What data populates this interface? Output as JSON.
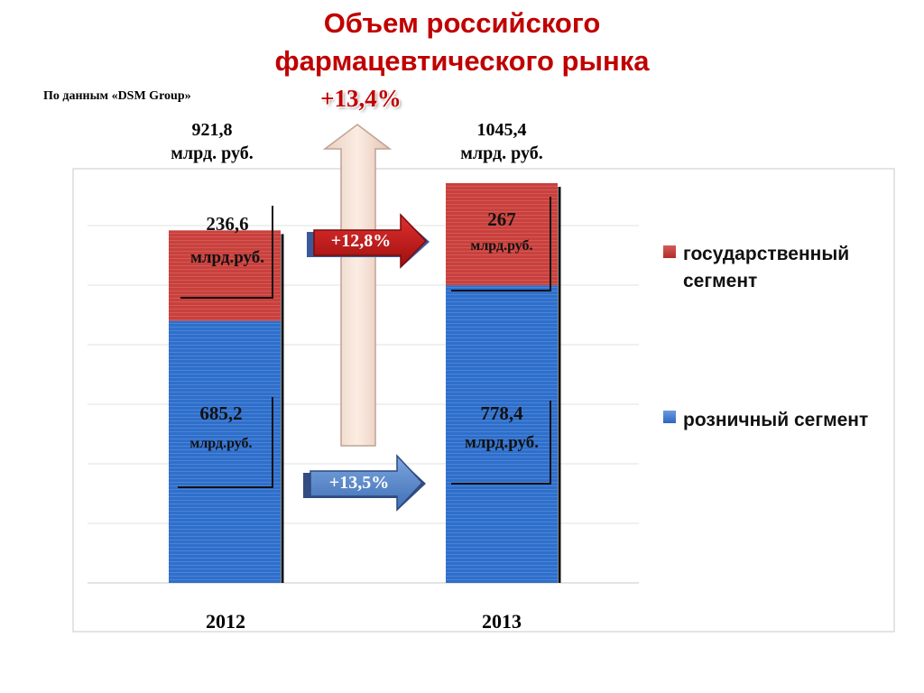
{
  "title_line1": "Объем российского",
  "title_line2": "фармацевтического рынка",
  "source_note": "По данным «DSM Group»",
  "total_growth_label": "+13,4%",
  "colors": {
    "government": "#c0392b",
    "retail": "#2f6fcb",
    "title": "#c00000"
  },
  "chart_data": {
    "type": "bar",
    "stacked": true,
    "categories": [
      "2012",
      "2013"
    ],
    "series": [
      {
        "name": "розничный сегмент",
        "values": [
          685.2,
          778.4
        ],
        "value_labels": [
          "685,2",
          "778,4"
        ],
        "unit_labels": [
          "млрд.руб.",
          "млрд.руб."
        ]
      },
      {
        "name": "государственный сегмент",
        "values": [
          236.6,
          267
        ],
        "value_labels": [
          "236,6",
          "267"
        ],
        "unit_labels": [
          "млрд.руб.",
          "млрд.руб."
        ]
      }
    ],
    "totals": [
      {
        "value": 921.8,
        "label": "921,8",
        "unit": "млрд. руб."
      },
      {
        "value": 1045.4,
        "label": "1045,4",
        "unit": "млрд. руб."
      }
    ],
    "growth": {
      "government": "+12,8%",
      "retail": "+13,5%"
    },
    "legend_position": "right",
    "grid": true,
    "ylim": [
      0,
      1050
    ]
  },
  "legend": {
    "government": "государственный сегмент",
    "retail": "розничный сегмент"
  }
}
